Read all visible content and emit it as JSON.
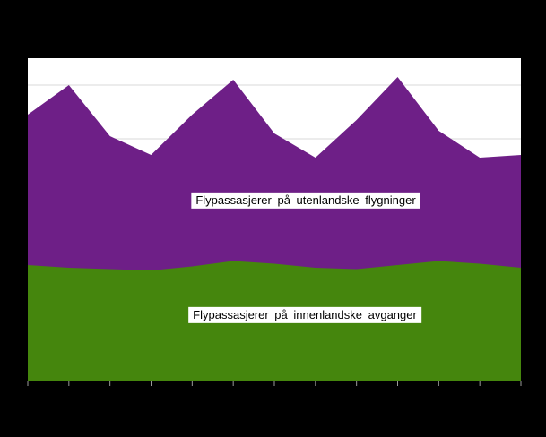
{
  "chart_data": {
    "type": "area",
    "stacked": true,
    "title": "",
    "x": [
      1,
      2,
      3,
      4,
      5,
      6,
      7,
      8,
      9,
      10,
      11,
      12,
      13
    ],
    "x_tick_labels_visible": false,
    "y_tick_labels_visible": false,
    "series": [
      {
        "name": "Flypassasjerer på innenlandske avganger",
        "color": "#45860d",
        "values": [
          4.3,
          4.2,
          4.15,
          4.1,
          4.25,
          4.45,
          4.35,
          4.2,
          4.15,
          4.3,
          4.45,
          4.35,
          4.2
        ]
      },
      {
        "name": "Flypassasjerer på utenlandske flygninger",
        "color": "#6e1f87",
        "values": [
          5.6,
          6.8,
          4.95,
          4.3,
          5.65,
          6.75,
          4.85,
          4.1,
          5.55,
          7.0,
          4.85,
          3.95,
          4.2
        ]
      }
    ],
    "ylim": [
      0,
      12
    ],
    "gridline_values": [
      1,
      3,
      5,
      7,
      9,
      11
    ],
    "grid_color": "#d9d9d9",
    "tick_color": "#9a9a9a",
    "background": "#000000",
    "plot_background": "#ffffff",
    "legend": "inline-labels-inside-plot"
  }
}
